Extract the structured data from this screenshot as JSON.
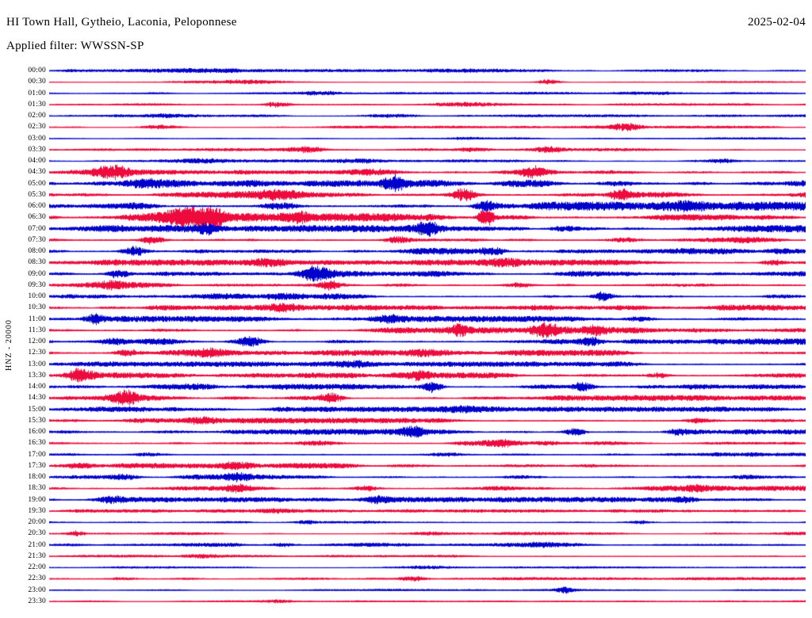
{
  "header": {
    "station_title": "HI Town Hall, Gytheio, Laconia, Peloponnese",
    "date": "2025-02-04",
    "filter": "Applied filter: WWSSN-SP"
  },
  "y_axis_label": "HNZ - 20000",
  "chart_data": {
    "type": "line",
    "title": "HI Town Hall, Gytheio, Laconia, Peloponnese",
    "subtitle": "Applied filter: WWSSN-SP",
    "date": "2025-02-04",
    "description": "24-hour helicorder seismogram; one horizontal trace per 30-minute interval, colors alternating blue/red; amplitude bursts mark seismic events and noise",
    "grid": false,
    "legend": "none",
    "minutes_per_line": 30,
    "trace_colors": {
      "blue": "#0000cd",
      "red": "#ee0a3c"
    },
    "rows": [
      {
        "time": "00:00",
        "color": "blue",
        "base_amplitude": 1.1,
        "bursts": [
          [
            0.2,
            1.5,
            40
          ],
          [
            0.55,
            1.2,
            30
          ]
        ]
      },
      {
        "time": "00:30",
        "color": "red",
        "base_amplitude": 0.7,
        "bursts": [
          [
            0.25,
            2.2,
            50
          ],
          [
            0.66,
            2.6,
            10
          ]
        ]
      },
      {
        "time": "01:00",
        "color": "blue",
        "base_amplitude": 1.0,
        "bursts": [
          [
            0.35,
            1.8,
            20
          ],
          [
            0.8,
            1.2,
            25
          ]
        ]
      },
      {
        "time": "01:30",
        "color": "red",
        "base_amplitude": 0.9,
        "bursts": [
          [
            0.3,
            3.0,
            12
          ],
          [
            0.55,
            1.5,
            30
          ]
        ]
      },
      {
        "time": "02:00",
        "color": "blue",
        "base_amplitude": 1.0,
        "bursts": [
          [
            0.45,
            1.5,
            30
          ],
          [
            0.15,
            1.3,
            20
          ]
        ]
      },
      {
        "time": "02:30",
        "color": "red",
        "base_amplitude": 1.0,
        "bursts": [
          [
            0.76,
            3.6,
            14
          ],
          [
            0.15,
            2.2,
            18
          ]
        ]
      },
      {
        "time": "03:00",
        "color": "blue",
        "base_amplitude": 0.8,
        "bursts": [
          [
            0.55,
            1.4,
            20
          ]
        ]
      },
      {
        "time": "03:30",
        "color": "red",
        "base_amplitude": 1.1,
        "bursts": [
          [
            0.34,
            2.6,
            14
          ],
          [
            0.66,
            3.0,
            12
          ],
          [
            0.56,
            2.0,
            16
          ]
        ]
      },
      {
        "time": "04:00",
        "color": "blue",
        "base_amplitude": 1.1,
        "bursts": [
          [
            0.41,
            2.4,
            16
          ],
          [
            0.89,
            2.0,
            14
          ],
          [
            0.2,
            1.6,
            20
          ]
        ]
      },
      {
        "time": "04:30",
        "color": "red",
        "base_amplitude": 2.0,
        "bursts": [
          [
            0.082,
            5.5,
            16
          ],
          [
            0.64,
            5.5,
            12
          ],
          [
            0.43,
            2.6,
            18
          ]
        ]
      },
      {
        "time": "05:00",
        "color": "blue",
        "base_amplitude": 2.6,
        "bursts": [
          [
            0.457,
            7.5,
            11
          ],
          [
            0.12,
            2.8,
            20
          ],
          [
            0.75,
            2.6,
            16
          ]
        ]
      },
      {
        "time": "05:30",
        "color": "red",
        "base_amplitude": 2.6,
        "bursts": [
          [
            0.548,
            6.5,
            11
          ],
          [
            0.755,
            5.0,
            11
          ],
          [
            0.3,
            2.6,
            20
          ]
        ]
      },
      {
        "time": "06:00",
        "color": "blue",
        "base_amplitude": 3.2,
        "bursts": [
          [
            0.577,
            5.0,
            10
          ],
          [
            0.31,
            3.4,
            14
          ],
          [
            0.85,
            3.0,
            16
          ]
        ]
      },
      {
        "time": "06:30",
        "color": "red",
        "base_amplitude": 3.0,
        "bursts": [
          [
            0.187,
            9.5,
            22
          ],
          [
            0.213,
            8.0,
            10
          ],
          [
            0.577,
            9.0,
            7
          ],
          [
            0.33,
            3.6,
            12
          ]
        ]
      },
      {
        "time": "07:00",
        "color": "blue",
        "base_amplitude": 2.6,
        "bursts": [
          [
            0.21,
            5.0,
            9
          ],
          [
            0.5,
            6.0,
            9
          ],
          [
            0.68,
            3.0,
            12
          ]
        ]
      },
      {
        "time": "07:30",
        "color": "red",
        "base_amplitude": 2.4,
        "bursts": [
          [
            0.134,
            4.2,
            10
          ],
          [
            0.46,
            3.4,
            12
          ],
          [
            0.76,
            2.6,
            14
          ]
        ]
      },
      {
        "time": "08:00",
        "color": "blue",
        "base_amplitude": 2.4,
        "bursts": [
          [
            0.113,
            5.0,
            11
          ],
          [
            0.585,
            2.8,
            12
          ]
        ]
      },
      {
        "time": "08:30",
        "color": "red",
        "base_amplitude": 2.2,
        "bursts": [
          [
            0.957,
            2.8,
            10
          ],
          [
            0.29,
            2.4,
            14
          ],
          [
            0.6,
            2.2,
            16
          ]
        ]
      },
      {
        "time": "09:00",
        "color": "blue",
        "base_amplitude": 2.3,
        "bursts": [
          [
            0.09,
            4.4,
            10
          ],
          [
            0.352,
            6.5,
            13
          ]
        ]
      },
      {
        "time": "09:30",
        "color": "red",
        "base_amplitude": 2.2,
        "bursts": [
          [
            0.37,
            5.0,
            10
          ],
          [
            0.08,
            2.8,
            12
          ],
          [
            0.62,
            2.2,
            14
          ]
        ]
      },
      {
        "time": "10:00",
        "color": "blue",
        "base_amplitude": 2.2,
        "bursts": [
          [
            0.732,
            5.0,
            10
          ],
          [
            0.3,
            2.4,
            16
          ]
        ]
      },
      {
        "time": "10:30",
        "color": "red",
        "base_amplitude": 2.1,
        "bursts": [
          [
            0.31,
            3.0,
            14
          ],
          [
            0.65,
            2.2,
            16
          ]
        ]
      },
      {
        "time": "11:00",
        "color": "blue",
        "base_amplitude": 2.2,
        "bursts": [
          [
            0.059,
            4.4,
            9
          ],
          [
            0.45,
            2.4,
            14
          ],
          [
            0.78,
            2.2,
            12
          ]
        ]
      },
      {
        "time": "11:30",
        "color": "red",
        "base_amplitude": 2.3,
        "bursts": [
          [
            0.656,
            7.5,
            14
          ],
          [
            0.543,
            4.4,
            8
          ],
          [
            0.72,
            3.4,
            10
          ]
        ]
      },
      {
        "time": "12:00",
        "color": "blue",
        "base_amplitude": 2.3,
        "bursts": [
          [
            0.265,
            5.0,
            11
          ],
          [
            0.716,
            4.4,
            10
          ],
          [
            0.08,
            2.4,
            14
          ]
        ]
      },
      {
        "time": "12:30",
        "color": "red",
        "base_amplitude": 2.2,
        "bursts": [
          [
            0.103,
            3.6,
            12
          ],
          [
            0.21,
            3.0,
            14
          ],
          [
            0.5,
            2.2,
            16
          ]
        ]
      },
      {
        "time": "13:00",
        "color": "blue",
        "base_amplitude": 1.9,
        "bursts": [
          [
            0.4,
            2.0,
            18
          ],
          [
            0.75,
            1.8,
            14
          ]
        ]
      },
      {
        "time": "13:30",
        "color": "red",
        "base_amplitude": 2.1,
        "bursts": [
          [
            0.04,
            6.5,
            11
          ],
          [
            0.49,
            4.4,
            8
          ],
          [
            0.805,
            2.8,
            10
          ]
        ]
      },
      {
        "time": "14:00",
        "color": "blue",
        "base_amplitude": 2.1,
        "bursts": [
          [
            0.506,
            6.0,
            9
          ],
          [
            0.705,
            5.0,
            9
          ],
          [
            0.2,
            2.2,
            14
          ]
        ]
      },
      {
        "time": "14:30",
        "color": "red",
        "base_amplitude": 2.1,
        "bursts": [
          [
            0.1,
            6.5,
            11
          ],
          [
            0.373,
            5.0,
            10
          ]
        ]
      },
      {
        "time": "15:00",
        "color": "blue",
        "base_amplitude": 1.9,
        "bursts": [
          [
            0.55,
            2.0,
            16
          ],
          [
            0.3,
            1.8,
            14
          ]
        ]
      },
      {
        "time": "15:30",
        "color": "red",
        "base_amplitude": 2.0,
        "bursts": [
          [
            0.2,
            2.4,
            14
          ],
          [
            0.86,
            2.0,
            12
          ]
        ]
      },
      {
        "time": "16:00",
        "color": "blue",
        "base_amplitude": 2.1,
        "bursts": [
          [
            0.48,
            5.0,
            10
          ],
          [
            0.695,
            4.4,
            9
          ],
          [
            0.83,
            2.8,
            10
          ]
        ]
      },
      {
        "time": "16:30",
        "color": "red",
        "base_amplitude": 2.0,
        "bursts": [
          [
            0.35,
            2.2,
            16
          ],
          [
            0.6,
            2.0,
            14
          ]
        ]
      },
      {
        "time": "17:00",
        "color": "blue",
        "base_amplitude": 1.8,
        "bursts": [
          [
            0.13,
            2.0,
            14
          ],
          [
            0.52,
            1.8,
            16
          ]
        ]
      },
      {
        "time": "17:30",
        "color": "red",
        "base_amplitude": 2.0,
        "bursts": [
          [
            0.25,
            2.4,
            16
          ],
          [
            0.04,
            2.0,
            12
          ]
        ]
      },
      {
        "time": "18:00",
        "color": "blue",
        "base_amplitude": 1.9,
        "bursts": [
          [
            0.25,
            3.0,
            12
          ],
          [
            0.1,
            2.4,
            14
          ],
          [
            0.62,
            2.0,
            14
          ]
        ]
      },
      {
        "time": "18:30",
        "color": "red",
        "base_amplitude": 2.0,
        "bursts": [
          [
            0.25,
            3.0,
            12
          ],
          [
            0.42,
            2.4,
            12
          ],
          [
            0.86,
            2.0,
            12
          ]
        ]
      },
      {
        "time": "19:00",
        "color": "blue",
        "base_amplitude": 1.9,
        "bursts": [
          [
            0.08,
            2.4,
            12
          ],
          [
            0.43,
            2.8,
            12
          ],
          [
            0.84,
            2.4,
            12
          ]
        ]
      },
      {
        "time": "19:30",
        "color": "red",
        "base_amplitude": 1.2,
        "bursts": [
          [
            0.3,
            1.4,
            16
          ]
        ]
      },
      {
        "time": "20:00",
        "color": "blue",
        "base_amplitude": 1.5,
        "bursts": [
          [
            0.34,
            2.0,
            12
          ],
          [
            0.78,
            1.8,
            12
          ]
        ]
      },
      {
        "time": "20:30",
        "color": "red",
        "base_amplitude": 1.2,
        "bursts": [
          [
            0.035,
            2.8,
            9
          ],
          [
            0.5,
            1.4,
            14
          ]
        ]
      },
      {
        "time": "21:00",
        "color": "blue",
        "base_amplitude": 1.5,
        "bursts": [
          [
            0.31,
            2.0,
            12
          ],
          [
            0.65,
            1.6,
            12
          ]
        ]
      },
      {
        "time": "21:30",
        "color": "red",
        "base_amplitude": 1.0,
        "bursts": [
          [
            0.2,
            1.2,
            14
          ]
        ]
      },
      {
        "time": "22:00",
        "color": "blue",
        "base_amplitude": 0.8,
        "bursts": [
          [
            0.5,
            1.0,
            20
          ]
        ]
      },
      {
        "time": "22:30",
        "color": "red",
        "base_amplitude": 1.1,
        "bursts": [
          [
            0.48,
            1.8,
            10
          ],
          [
            0.1,
            1.4,
            12
          ]
        ]
      },
      {
        "time": "23:00",
        "color": "blue",
        "base_amplitude": 0.8,
        "bursts": [
          [
            0.68,
            3.4,
            8
          ]
        ]
      },
      {
        "time": "23:30",
        "color": "red",
        "base_amplitude": 0.7,
        "bursts": [
          [
            0.3,
            1.0,
            16
          ]
        ]
      }
    ]
  }
}
